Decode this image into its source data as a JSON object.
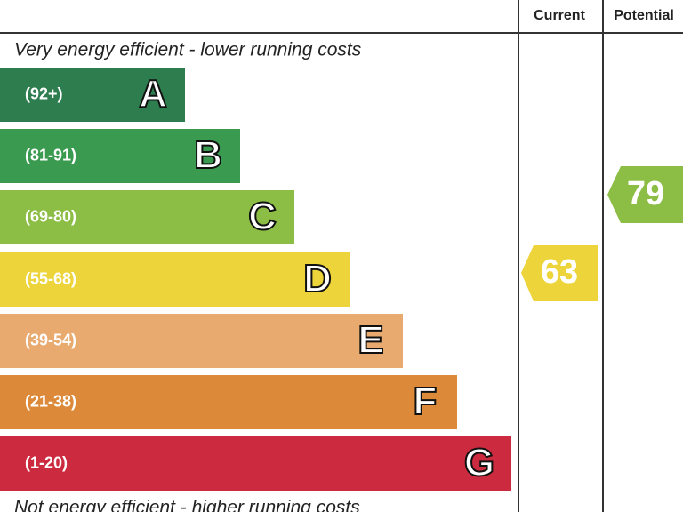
{
  "header": {
    "current": "Current",
    "potential": "Potential"
  },
  "top_note": "Very energy efficient - lower running costs",
  "bottom_note": "Not energy efficient - higher running costs",
  "bands": [
    {
      "range": "(92+)",
      "letter": "A"
    },
    {
      "range": "(81-91)",
      "letter": "B"
    },
    {
      "range": "(69-80)",
      "letter": "C"
    },
    {
      "range": "(55-68)",
      "letter": "D"
    },
    {
      "range": "(39-54)",
      "letter": "E"
    },
    {
      "range": "(21-38)",
      "letter": "F"
    },
    {
      "range": "(1-20)",
      "letter": "G"
    }
  ],
  "current": 63,
  "potential": 79
}
